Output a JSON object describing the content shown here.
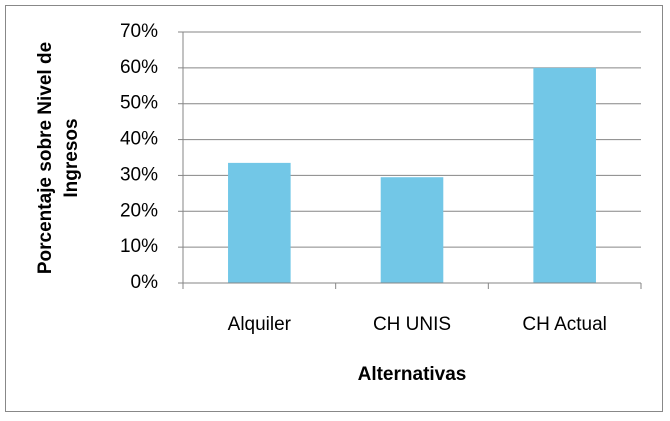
{
  "chart_data": {
    "type": "bar",
    "categories": [
      "Alquiler",
      "CH UNIS",
      "CH Actual"
    ],
    "values": [
      33.5,
      29.5,
      60
    ],
    "color": "#72c7e7",
    "ylim": [
      0,
      70
    ],
    "yticks": [
      {
        "value": 0,
        "label": "0%"
      },
      {
        "value": 10,
        "label": "10%"
      },
      {
        "value": 20,
        "label": "20%"
      },
      {
        "value": 30,
        "label": "30%"
      },
      {
        "value": 40,
        "label": "40%"
      },
      {
        "value": 50,
        "label": "50%"
      },
      {
        "value": 60,
        "label": "60%"
      },
      {
        "value": 70,
        "label": "70%"
      }
    ],
    "grid": true,
    "x_label": "Alternativas",
    "y_label": [
      "Porcentaje sobre Nivel de",
      "Ingresos"
    ]
  }
}
